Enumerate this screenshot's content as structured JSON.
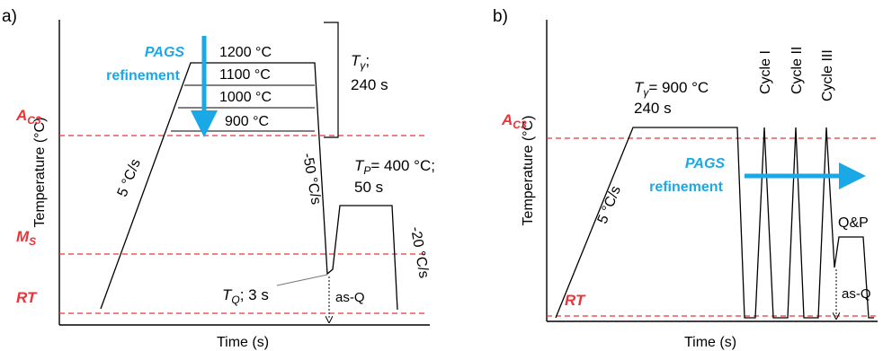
{
  "panel_a": {
    "label": "a)",
    "xlabel": "Time (s)",
    "ylabel": "Temperature (°C)",
    "arrow_text_1": "PAGS",
    "arrow_text_2": "refinement",
    "austenitization_temps": [
      "1200 °C",
      "1100 °C",
      "1000 °C",
      "900 °C"
    ],
    "t_gamma_symbol": "T",
    "t_gamma_sub": "γ",
    "t_gamma_suffix": ";",
    "t_gamma_time": "240 s",
    "ac3_main": "A",
    "ac3_sub": "C3",
    "ms_main": "M",
    "ms_sub": "S",
    "rt": "RT",
    "heating_rate": "5 °C/s",
    "quench_rate": "-50 °C/s",
    "tp_symbol": "T",
    "tp_sub": "P",
    "tp_value": "= 400 °C;",
    "tp_time": "50 s",
    "cool_rate": "-20 °C/s",
    "tq_symbol": "T",
    "tq_sub": "Q",
    "tq_value": "; 3 s",
    "as_q": "as-Q"
  },
  "panel_b": {
    "label": "b)",
    "xlabel": "Time (s)",
    "ylabel": "Temperature (°C)",
    "t_gamma_symbol": "T",
    "t_gamma_sub": "γ",
    "t_gamma_value": "= 900 °C",
    "t_gamma_time": "240 s",
    "ac3_main": "A",
    "ac3_sub": "C3",
    "rt": "RT",
    "heating_rate": "5 °C/s",
    "arrow_text_1": "PAGS",
    "arrow_text_2": "refinement",
    "cycles": [
      "Cycle I",
      "Cycle II",
      "Cycle III"
    ],
    "qp": "Q&P",
    "as_q": "as-Q"
  },
  "colors": {
    "critical_lines": "#e8343a",
    "refinement_arrow": "#1aa9e6",
    "curve": "#000000"
  }
}
